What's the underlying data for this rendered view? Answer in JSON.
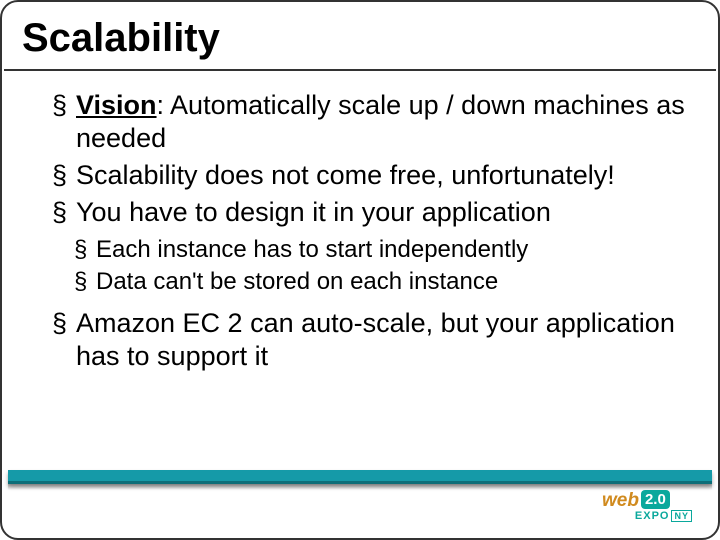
{
  "slide": {
    "title": "Scalability",
    "bullets": [
      {
        "level": 1,
        "label": "Vision",
        "text": ":  Automatically scale up / down machines as needed"
      },
      {
        "level": 1,
        "text": "Scalability does not come free, unfortunately!"
      },
      {
        "level": 1,
        "text": "You have to design it in your application"
      },
      {
        "level": 2,
        "text": "Each instance has to start independently"
      },
      {
        "level": 2,
        "text": "Data can't be stored on each instance"
      },
      {
        "level": 1,
        "text": "Amazon EC 2 can auto-scale, but your application has to support it"
      }
    ]
  },
  "footer": {
    "bar_color": "#159aa8",
    "logo": {
      "brand": "web",
      "version": "2.0",
      "expo": "EXPO",
      "city": "NY"
    }
  },
  "style": {
    "background": "#ffffff",
    "title_fontsize": 40,
    "l1_fontsize": 27,
    "l2_fontsize": 24,
    "text_color": "#000000",
    "border_color": "#333333",
    "border_radius": 18
  }
}
